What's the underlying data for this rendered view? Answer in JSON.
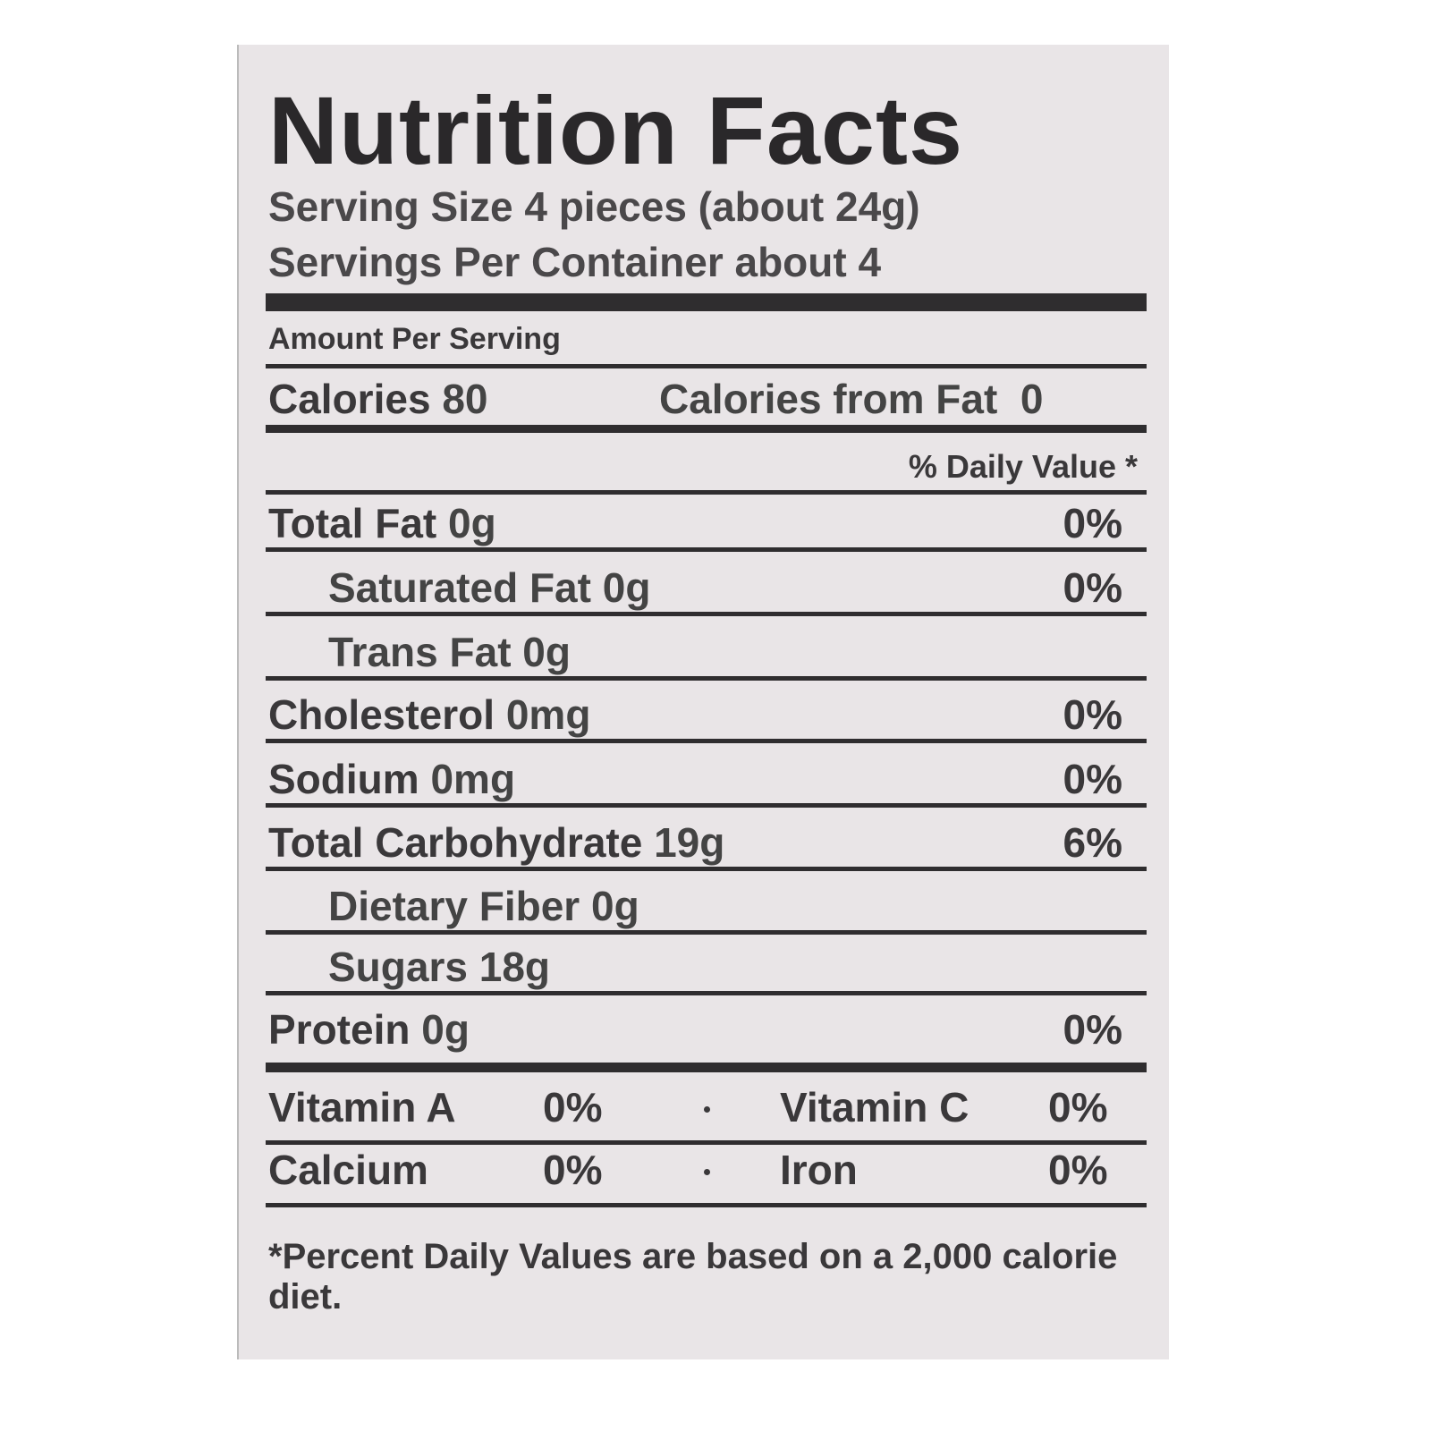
{
  "title": "Nutrition Facts",
  "serving_size": "Serving Size 4 pieces (about 24g)",
  "servings_per_container": "Servings Per Container about 4",
  "amount_per_serving": "Amount Per Serving",
  "calories": {
    "label": "Calories",
    "value": "80"
  },
  "calories_from_fat": {
    "label": "Calories from Fat",
    "value": "0"
  },
  "daily_value_header": "% Daily Value *",
  "nutrients": [
    {
      "name": "Total Fat",
      "amount": "0g",
      "dv": "0%"
    },
    {
      "name": "Saturated Fat",
      "amount": "0g",
      "dv": "0%"
    },
    {
      "name": "Trans Fat",
      "amount": "0g"
    },
    {
      "name": "Cholesterol",
      "amount": "0mg",
      "dv": "0%"
    },
    {
      "name": "Sodium",
      "amount": "0mg",
      "dv": "0%"
    },
    {
      "name": "Total Carbohydrate",
      "amount": "19g",
      "dv": "6%"
    },
    {
      "name": "Dietary Fiber",
      "amount": "0g"
    },
    {
      "name": "Sugars",
      "amount": "18g"
    },
    {
      "name": "Protein",
      "amount": "0g",
      "dv": "0%"
    }
  ],
  "vitamins": [
    [
      {
        "name": "Vitamin A",
        "dv": "0%"
      },
      {
        "name": "Vitamin C",
        "dv": "0%"
      }
    ],
    [
      {
        "name": "Calcium",
        "dv": "0%"
      },
      {
        "name": "Iron",
        "dv": "0%"
      }
    ]
  ],
  "footnote": "*Percent Daily Values are based on a 2,000 calorie diet."
}
